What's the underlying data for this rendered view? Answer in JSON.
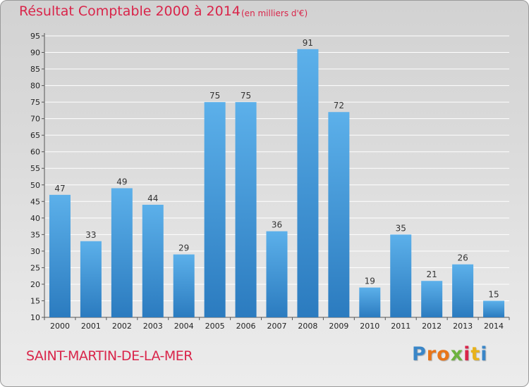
{
  "title": "Résultat Comptable 2000 à 2014",
  "unit_note": "(en milliers d'€)",
  "commune": "SAINT-MARTIN-DE-LA-MER",
  "logo": {
    "letters": [
      "P",
      "r",
      "o",
      "x",
      "i",
      "t",
      "i"
    ],
    "colors": [
      "#3a86c8",
      "#e8751a",
      "#e8751a",
      "#6db33f",
      "#d9254a",
      "#e8b21a",
      "#3a86c8"
    ]
  },
  "colors": {
    "bar_top": "#5cb0ea",
    "bar_bottom": "#2b7bbf",
    "accent": "#d9254a"
  },
  "chart_data": {
    "type": "bar",
    "title": "Résultat Comptable 2000 à 2014",
    "xlabel": "",
    "ylabel": "en milliers d'€",
    "categories": [
      "2000",
      "2001",
      "2002",
      "2003",
      "2004",
      "2005",
      "2006",
      "2007",
      "2008",
      "2009",
      "2010",
      "2011",
      "2012",
      "2013",
      "2014"
    ],
    "values": [
      47,
      33,
      49,
      44,
      29,
      75,
      75,
      36,
      91,
      72,
      19,
      35,
      21,
      26,
      15
    ],
    "ylim": [
      10,
      95
    ],
    "yticks": [
      10,
      15,
      20,
      25,
      30,
      35,
      40,
      45,
      50,
      55,
      60,
      65,
      70,
      75,
      80,
      85,
      90,
      95
    ],
    "grid": true
  }
}
